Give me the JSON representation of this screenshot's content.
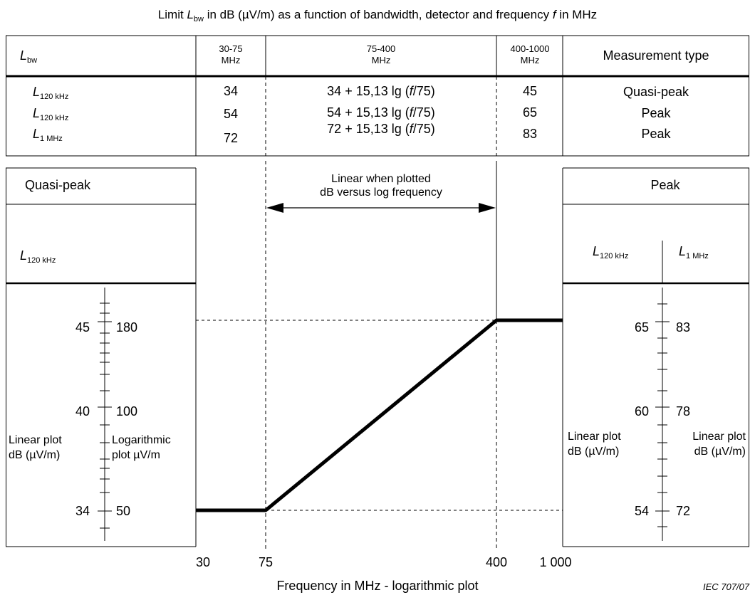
{
  "caption": {
    "prefix": "Limit ",
    "sym": "L",
    "sub": "bw",
    "mid": " in dB (µV/m) as a function of bandwidth, detector and frequency ",
    "f": "f",
    "suffix": " in MHz"
  },
  "table": {
    "header": {
      "lbw_sym": "L",
      "lbw_sub": "bw",
      "col1_line1": "30-75",
      "col1_line2": "MHz",
      "col2_line1": "75-400",
      "col2_line2": "MHz",
      "col3_line1": "400-1000",
      "col3_line2": "MHz",
      "type": "Measurement type"
    },
    "rows": [
      {
        "sym": "L",
        "sub": "120 kHz",
        "low": "34",
        "formula_a": "34 + 15,13 lg (",
        "formula_f": "f",
        "formula_b": "/75)",
        "high": "45",
        "type": "Quasi-peak"
      },
      {
        "sym": "L",
        "sub": "120 kHz",
        "low": "54",
        "formula_a": "54 + 15,13 lg (",
        "formula_f": "f",
        "formula_b": "/75)",
        "high": "65",
        "type": "Peak"
      },
      {
        "sym": "L",
        "sub": "1 MHz",
        "low": "72",
        "formula_a": "72 + 15,13 lg (",
        "formula_f": "f",
        "formula_b": "/75)",
        "high": "83",
        "type": "Peak"
      }
    ]
  },
  "left_panel": {
    "title": "Quasi-peak",
    "sym": "L",
    "sub": "120 kHz",
    "labels": {
      "linear_line1": "Linear plot",
      "linear_line2": "dB (µV/m)",
      "log_line1": "Logarithmic",
      "log_line2": "plot µV/m"
    },
    "ticks_db": [
      "45",
      "40",
      "34"
    ],
    "ticks_uv": [
      "180",
      "100",
      "50"
    ]
  },
  "right_panel": {
    "title": "Peak",
    "sym": "L",
    "sub_a": "120 kHz",
    "sub_b": "1 MHz",
    "labels": {
      "lin_a_line1": "Linear plot",
      "lin_a_line2": "dB (µV/m)",
      "lin_b_line1": "Linear plot",
      "lin_b_line2": "dB (µV/m)"
    },
    "ticks_a": [
      "65",
      "60",
      "54"
    ],
    "ticks_b": [
      "83",
      "78",
      "72"
    ]
  },
  "plot": {
    "annotation_line1": "Linear when plotted",
    "annotation_line2": "dB versus log frequency",
    "x_ticks": [
      "30",
      "75",
      "400",
      "1 000"
    ],
    "x_axis_label": "Frequency in MHz - logarithmic plot"
  },
  "chart_data": {
    "type": "line",
    "x_scale": "log",
    "y_scale": "linear",
    "x_unit": "MHz",
    "y_unit": "dB (µV/m)",
    "series": [
      {
        "x": [
          30,
          75,
          400,
          1000
        ],
        "y": [
          34,
          34,
          45,
          45
        ]
      }
    ]
  },
  "figure_id": "IEC   707/07"
}
